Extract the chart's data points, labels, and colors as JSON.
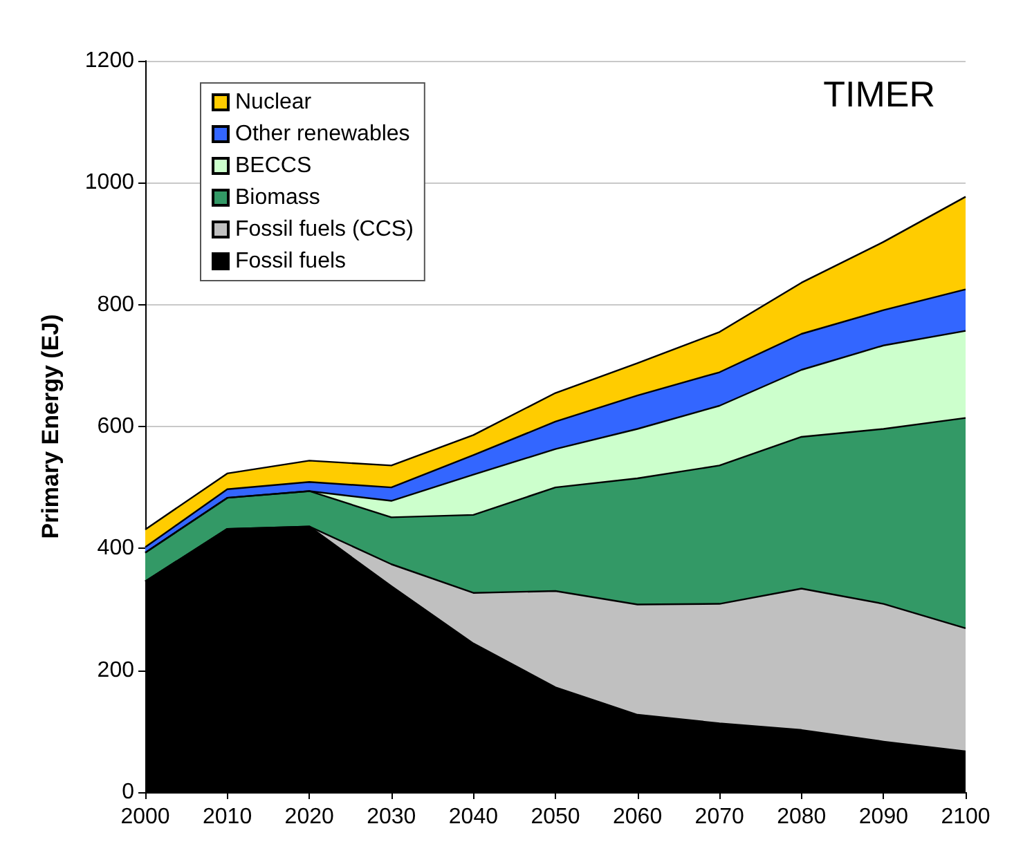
{
  "chart_data": {
    "type": "area",
    "stacked": true,
    "title": "TIMER",
    "ylabel": "Primary Energy (EJ)",
    "categories": [
      "2000",
      "2010",
      "2020",
      "2030",
      "2040",
      "2050",
      "2060",
      "2070",
      "2080",
      "2090",
      "2100"
    ],
    "series": [
      {
        "name": "Fossil fuels",
        "color": "#000000",
        "values": [
          346,
          432,
          436,
          338,
          244,
          172,
          127,
          113,
          102,
          83,
          67
        ]
      },
      {
        "name": "Fossil fuels (CCS)",
        "color": "#c0c0c0",
        "values": [
          0,
          0,
          0,
          36,
          83,
          158,
          181,
          196,
          232,
          226,
          202
        ]
      },
      {
        "name": "Biomass",
        "color": "#339966",
        "values": [
          47,
          51,
          58,
          77,
          128,
          170,
          207,
          227,
          249,
          287,
          345
        ]
      },
      {
        "name": "BECCS",
        "color": "#ccffcc",
        "values": [
          0,
          0,
          0,
          27,
          66,
          63,
          81,
          98,
          110,
          137,
          143
        ]
      },
      {
        "name": "Other renewables",
        "color": "#3366ff",
        "values": [
          9,
          14,
          15,
          22,
          32,
          45,
          55,
          55,
          59,
          58,
          68
        ]
      },
      {
        "name": "Nuclear",
        "color": "#ffcc00",
        "values": [
          29,
          26,
          35,
          36,
          33,
          47,
          53,
          66,
          84,
          112,
          152
        ]
      }
    ],
    "ylim": [
      0,
      1200
    ],
    "yticks": [
      0,
      200,
      400,
      600,
      800,
      1000,
      1200
    ],
    "grid": "y",
    "legend": "top left",
    "marker": "none"
  }
}
